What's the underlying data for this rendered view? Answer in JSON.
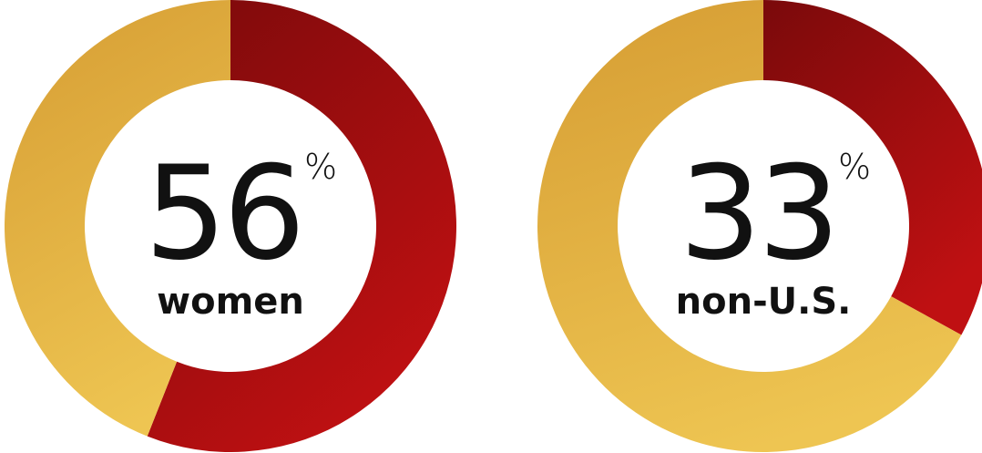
{
  "chart_data": [
    {
      "type": "pie",
      "variant": "donut",
      "value": 56,
      "unit": "%",
      "label": "women",
      "total": 100,
      "colors": {
        "value": "#a50d0f",
        "remainder": "#e2ad3c"
      }
    },
    {
      "type": "pie",
      "variant": "donut",
      "value": 33,
      "unit": "%",
      "label": "non-U.S.",
      "total": 100,
      "colors": {
        "value": "#a50d0f",
        "remainder": "#e2ad3c"
      }
    }
  ]
}
